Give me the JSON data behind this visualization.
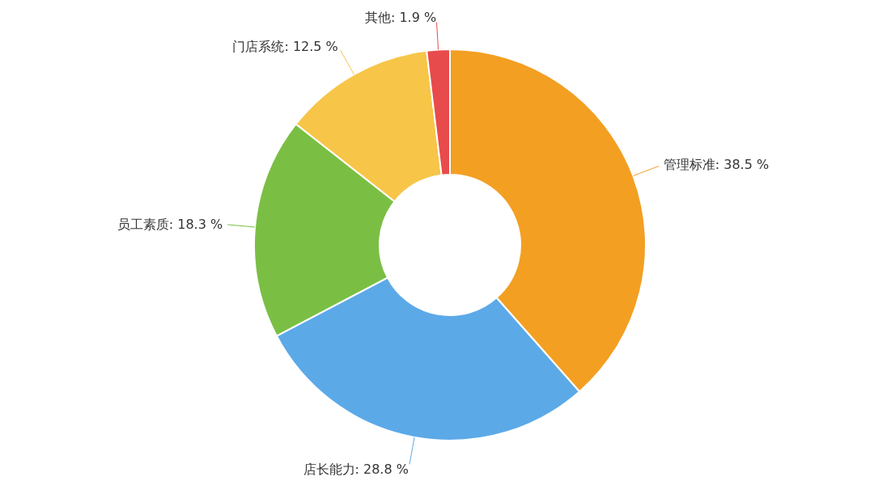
{
  "chart_data": {
    "type": "donut",
    "categories": [
      "管理标准",
      "店长能力",
      "员工素质",
      "门店系统",
      "其他"
    ],
    "values": [
      38.5,
      28.8,
      18.3,
      12.5,
      1.9
    ],
    "colors": [
      "#f39f22",
      "#5ca9e8",
      "#7abf44",
      "#f7c548",
      "#e84b4b"
    ],
    "value_labels": [
      "38.5 %",
      "28.8 %",
      "18.3 %",
      "12.5 %",
      "1.9 %"
    ]
  }
}
